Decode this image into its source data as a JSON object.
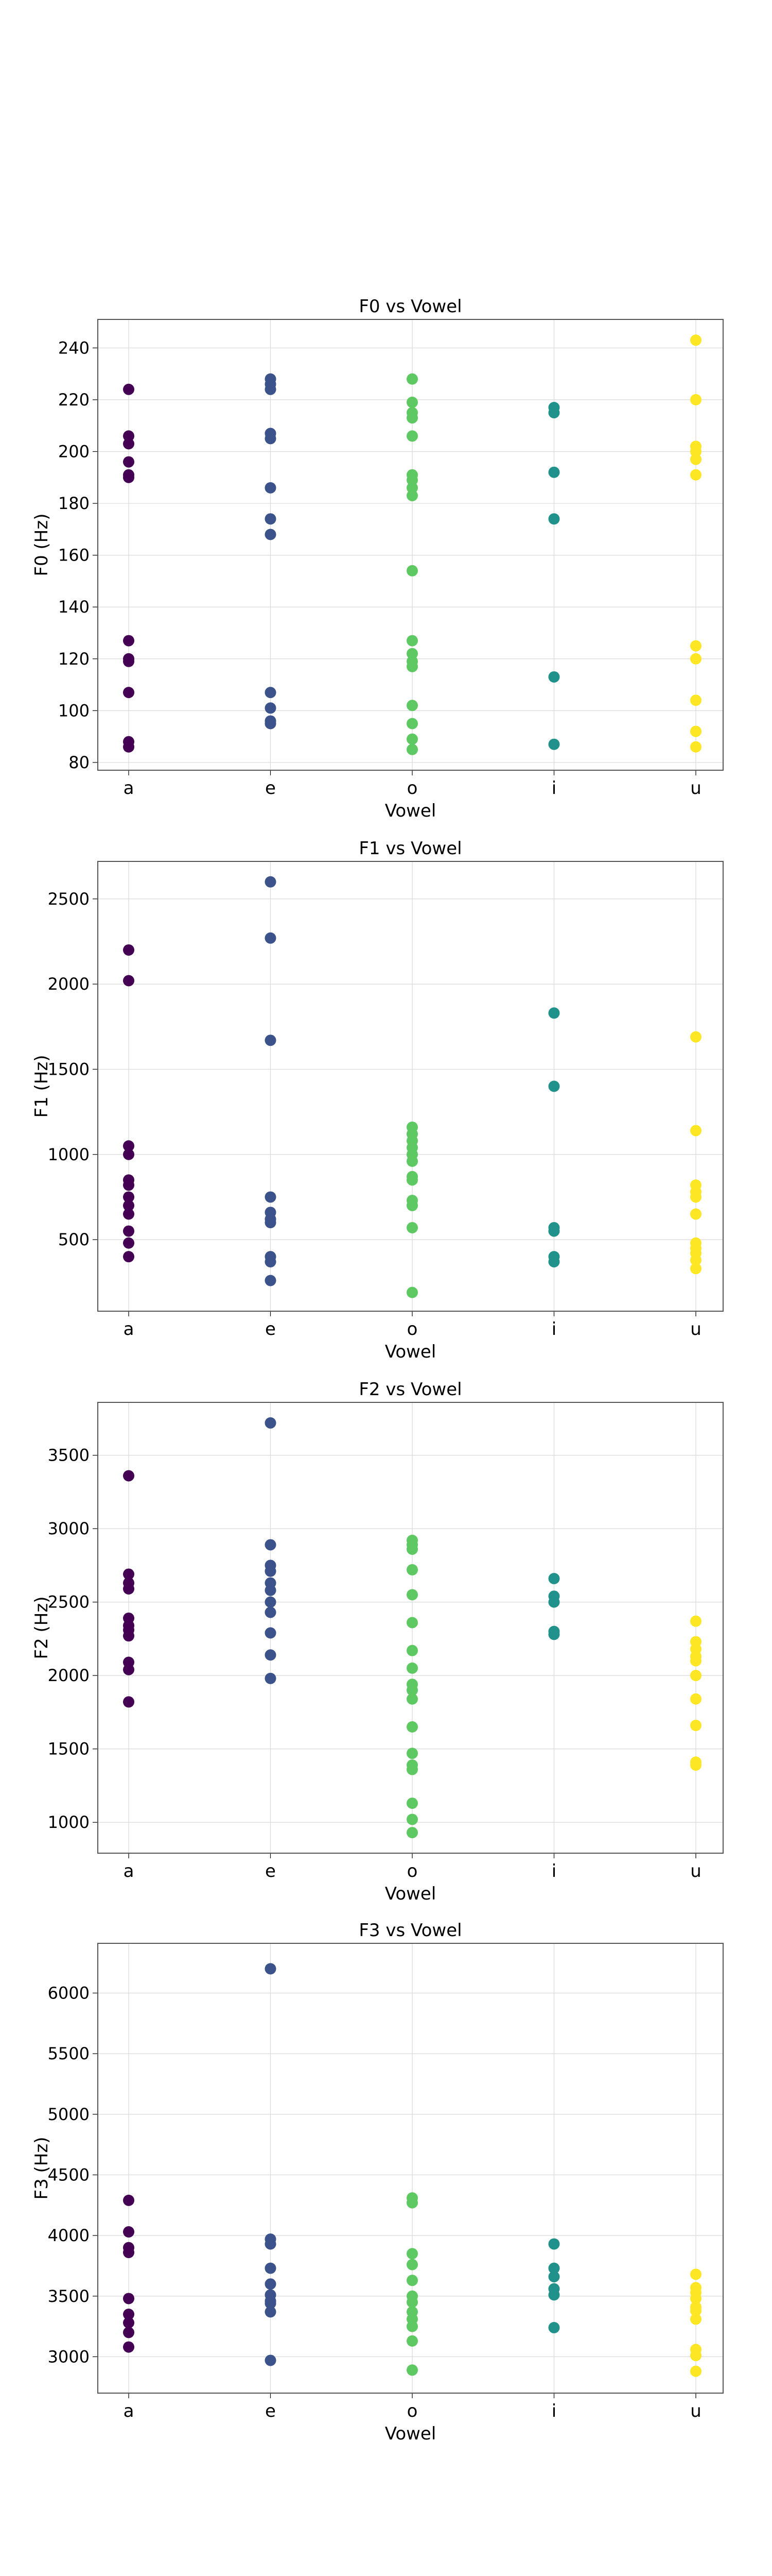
{
  "chart_data": [
    {
      "type": "scatter",
      "title": "F0 vs Vowel",
      "xlabel": "Vowel",
      "ylabel": "F0 (Hz)",
      "categories": [
        "a",
        "e",
        "o",
        "i",
        "u"
      ],
      "ylim": [
        77,
        251
      ],
      "yticks": [
        80,
        100,
        120,
        140,
        160,
        180,
        200,
        220,
        240
      ],
      "grid": true,
      "points": {
        "a": [
          224,
          206,
          203,
          196,
          191,
          190,
          127,
          120,
          119,
          107,
          88,
          86
        ],
        "e": [
          228,
          226,
          224,
          207,
          205,
          186,
          174,
          168,
          107,
          101,
          96,
          95
        ],
        "o": [
          228,
          219,
          215,
          213,
          206,
          191,
          189,
          186,
          183,
          154,
          127,
          122,
          119,
          117,
          102,
          95,
          89,
          85
        ],
        "i": [
          217,
          215,
          192,
          174,
          113,
          87
        ],
        "u": [
          243,
          220,
          202,
          200,
          197,
          191,
          125,
          120,
          104,
          92,
          86
        ]
      }
    },
    {
      "type": "scatter",
      "title": "F1 vs Vowel",
      "xlabel": "Vowel",
      "ylabel": "F1 (Hz)",
      "categories": [
        "a",
        "e",
        "o",
        "i",
        "u"
      ],
      "ylim": [
        80,
        2720
      ],
      "yticks": [
        500,
        1000,
        1500,
        2000,
        2500
      ],
      "grid": true,
      "points": {
        "a": [
          2200,
          2020,
          1050,
          1000,
          850,
          820,
          750,
          700,
          650,
          550,
          480,
          400
        ],
        "e": [
          2600,
          2270,
          1670,
          750,
          660,
          620,
          600,
          400,
          370,
          260
        ],
        "o": [
          1160,
          1120,
          1080,
          1040,
          1000,
          960,
          870,
          850,
          730,
          700,
          570,
          190
        ],
        "i": [
          1830,
          1400,
          570,
          550,
          400,
          370
        ],
        "u": [
          1690,
          1140,
          820,
          780,
          750,
          650,
          480,
          450,
          420,
          380,
          330
        ]
      }
    },
    {
      "type": "scatter",
      "title": "F2 vs Vowel",
      "xlabel": "Vowel",
      "ylabel": "F2 (Hz)",
      "categories": [
        "a",
        "e",
        "o",
        "i",
        "u"
      ],
      "ylim": [
        790,
        3860
      ],
      "yticks": [
        1000,
        1500,
        2000,
        2500,
        3000,
        3500
      ],
      "grid": true,
      "points": {
        "a": [
          3360,
          2690,
          2630,
          2590,
          2390,
          2340,
          2310,
          2270,
          2090,
          2040,
          1820
        ],
        "e": [
          3720,
          2890,
          2750,
          2710,
          2630,
          2580,
          2500,
          2430,
          2290,
          2140,
          1980
        ],
        "o": [
          2920,
          2890,
          2860,
          2720,
          2550,
          2360,
          2170,
          2050,
          1940,
          1900,
          1840,
          1650,
          1470,
          1390,
          1360,
          1130,
          1020,
          930
        ],
        "i": [
          2660,
          2540,
          2500,
          2300,
          2280
        ],
        "u": [
          2370,
          2230,
          2180,
          2130,
          2100,
          2000,
          1840,
          1660,
          1410,
          1390
        ]
      }
    },
    {
      "type": "scatter",
      "title": "F3 vs Vowel",
      "xlabel": "Vowel",
      "ylabel": "F3 (Hz)",
      "categories": [
        "a",
        "e",
        "o",
        "i",
        "u"
      ],
      "ylim": [
        2700,
        6410
      ],
      "yticks": [
        3000,
        3500,
        4000,
        4500,
        5000,
        5500,
        6000
      ],
      "grid": true,
      "points": {
        "a": [
          4290,
          4030,
          3900,
          3860,
          3480,
          3350,
          3280,
          3200,
          3080
        ],
        "e": [
          6200,
          3970,
          3930,
          3730,
          3600,
          3510,
          3460,
          3440,
          3370,
          2970
        ],
        "o": [
          4310,
          4270,
          3850,
          3760,
          3630,
          3500,
          3450,
          3370,
          3310,
          3250,
          3130,
          2890
        ],
        "i": [
          3930,
          3730,
          3660,
          3560,
          3510,
          3240
        ],
        "u": [
          3680,
          3570,
          3530,
          3480,
          3410,
          3380,
          3310,
          3060,
          3010,
          2880
        ]
      }
    }
  ],
  "colors": {
    "a": "#440154",
    "e": "#3b528b",
    "o": "#5ec962",
    "i": "#21918c",
    "u": "#fde725",
    "grid": "#d9d9d9",
    "axes": "#555555"
  }
}
